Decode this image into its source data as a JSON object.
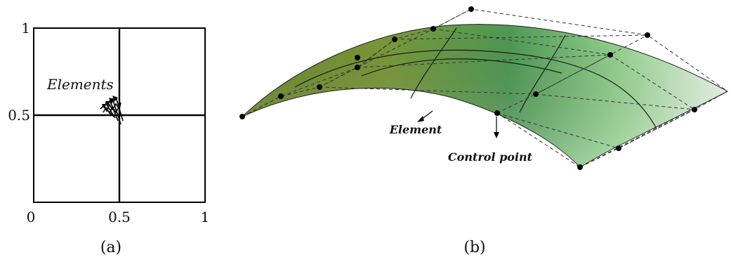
{
  "panel_a": {
    "y_tick_top": "1",
    "y_tick_mid": "0.5",
    "x_tick_left": "0",
    "x_tick_mid": "0.5",
    "x_tick_right": "1",
    "annotation": "Elements",
    "caption": "(a)"
  },
  "panel_b": {
    "element_label": "Element",
    "control_point_label": "Control point",
    "caption": "(b)"
  }
}
